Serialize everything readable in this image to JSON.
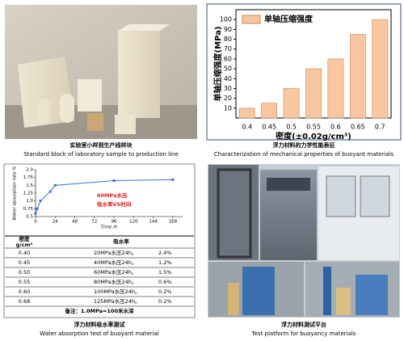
{
  "samples_photo": {
    "caption_cn": "实验室小样到生产线样块",
    "caption_en": "Standard block of laboratory sample to production line"
  },
  "chart_data": [
    {
      "type": "bar",
      "y_label": "单轴压缩强度(MPa)",
      "x_label": "密度(±0.02g/cm³)",
      "categories": [
        "0.4",
        "0.45",
        "0.5",
        "0.55",
        "0.6",
        "0.65",
        "0.7"
      ],
      "series": [
        {
          "name": "单轴压缩强度",
          "color": "#f8c6a0",
          "values": [
            10,
            15,
            30,
            50,
            60,
            85,
            100
          ]
        }
      ],
      "ylim": [
        0,
        110
      ],
      "yticks": [
        10,
        20,
        30,
        40,
        50,
        60,
        70,
        80,
        90,
        100
      ],
      "caption_cn": "浮力材料的力学性能表征",
      "caption_en": "Characterization of mechanical properties of buoyant materials"
    },
    {
      "type": "line",
      "y_label": "Water absorption rate %",
      "x_label": "Time /h",
      "x": [
        0,
        2,
        6,
        18,
        24,
        96,
        168
      ],
      "series": [
        {
          "name": "吸水率VS时间",
          "color": "#3b6fd4",
          "values": [
            0.6,
            0.75,
            1.0,
            1.3,
            1.5,
            1.65,
            1.68
          ]
        }
      ],
      "annotation": "60MPa水压",
      "xlim": [
        0,
        180
      ],
      "xticks": [
        0,
        24,
        48,
        72,
        96,
        120,
        144,
        168
      ],
      "ylim": [
        0.5,
        2.0
      ],
      "yticks": [
        0.5,
        0.75,
        {
          "value": 1.0,
          "label": "1.0"
        },
        1.25,
        1.5,
        1.75,
        {
          "value": 2.0,
          "label": "2.0"
        }
      ]
    }
  ],
  "absorption_table": {
    "header": [
      "密度",
      "g/cm³",
      "吸水率"
    ],
    "rows": [
      [
        "0.40",
        "20MPa水压24h。",
        "2.4%"
      ],
      [
        "0.45",
        "40MPa水压24h。",
        "1.2%"
      ],
      [
        "0.50",
        "60MPa水压24h。",
        "1.5%"
      ],
      [
        "0.55",
        "80MPa水压24h。",
        "0.6%"
      ],
      [
        "0.60",
        "100MPa水压24h。",
        "0.2%"
      ],
      [
        "0.68",
        "125MPa水压24h。",
        "0.2%"
      ]
    ],
    "note": "备注：1.0MPa≈100米水深",
    "caption_cn": "浮力材料吸水率测试",
    "caption_en": "Water absorption test of buoyant material"
  },
  "platform_photo": {
    "caption_cn": "浮力材料测试平台",
    "caption_en": "Test platform for buoyancy materials"
  }
}
